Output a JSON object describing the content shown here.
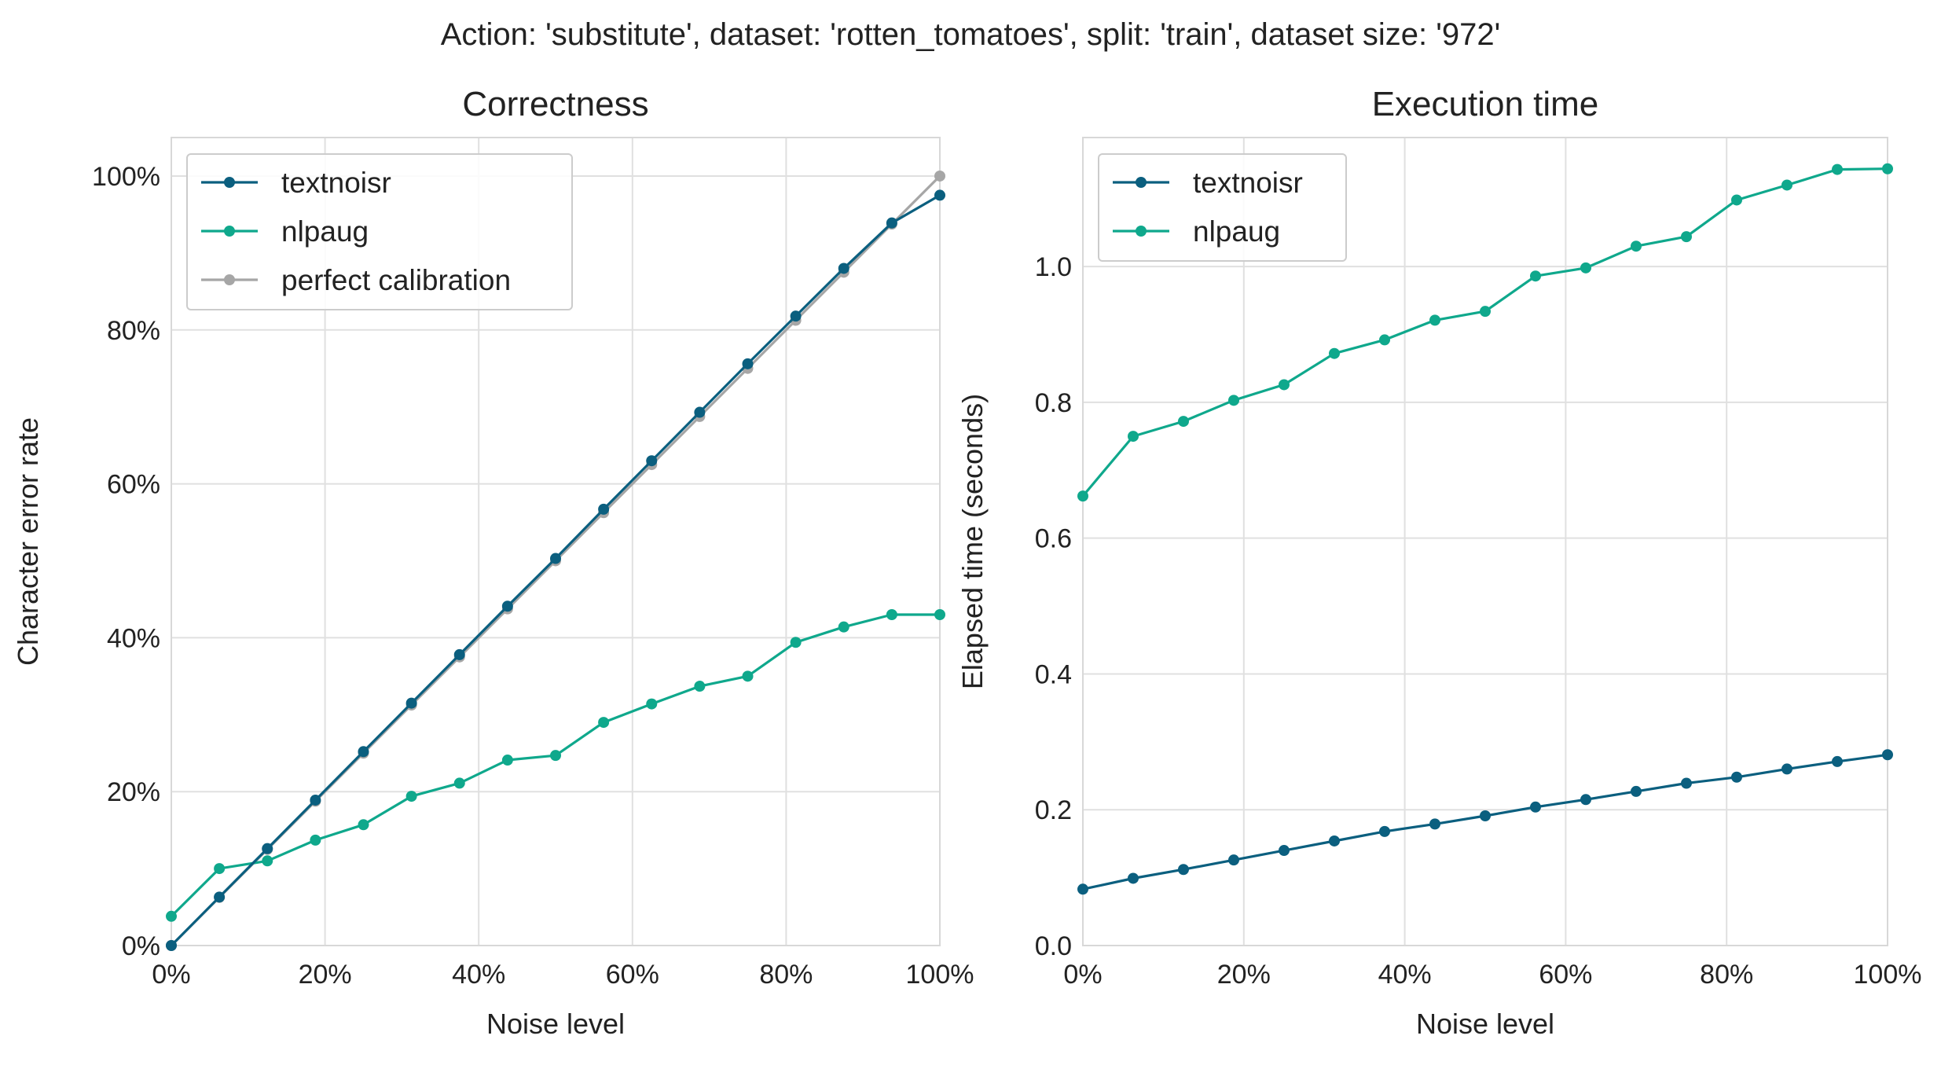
{
  "suptitle": "Action: 'substitute', dataset: 'rotten_tomatoes', split: 'train', dataset size: '972'",
  "chart_data": [
    {
      "type": "line",
      "title": "Correctness",
      "xlabel": "Noise level",
      "ylabel": "Character error rate",
      "xlim": [
        0,
        1
      ],
      "ylim": [
        0,
        1.05
      ],
      "xticks": [
        0,
        0.2,
        0.4,
        0.6,
        0.8,
        1.0
      ],
      "xtick_labels": [
        "0%",
        "20%",
        "40%",
        "60%",
        "80%",
        "100%"
      ],
      "yticks": [
        0,
        0.2,
        0.4,
        0.6,
        0.8,
        1.0
      ],
      "ytick_labels": [
        "0%",
        "20%",
        "40%",
        "60%",
        "80%",
        "100%"
      ],
      "grid": true,
      "legend_position": "top-left",
      "x": [
        0,
        0.0625,
        0.125,
        0.1875,
        0.25,
        0.3125,
        0.375,
        0.4375,
        0.5,
        0.5625,
        0.625,
        0.6875,
        0.75,
        0.8125,
        0.875,
        0.9375,
        1.0
      ],
      "series": [
        {
          "name": "textnoisr",
          "color": "#0b5f7f",
          "values": [
            0.0,
            0.063,
            0.126,
            0.189,
            0.252,
            0.315,
            0.378,
            0.441,
            0.503,
            0.567,
            0.63,
            0.693,
            0.756,
            0.818,
            0.88,
            0.939,
            0.975
          ]
        },
        {
          "name": "nlpaug",
          "color": "#0fa88c",
          "values": [
            0.038,
            0.1,
            0.11,
            0.137,
            0.157,
            0.194,
            0.211,
            0.241,
            0.247,
            0.29,
            0.314,
            0.337,
            0.35,
            0.394,
            0.414,
            0.43,
            0.43
          ]
        },
        {
          "name": "perfect calibration",
          "color": "#a6a6a6",
          "values": [
            0.0,
            0.0625,
            0.125,
            0.1875,
            0.25,
            0.3125,
            0.375,
            0.4375,
            0.5,
            0.5625,
            0.625,
            0.6875,
            0.75,
            0.8125,
            0.875,
            0.9375,
            1.0
          ]
        }
      ]
    },
    {
      "type": "line",
      "title": "Execution time",
      "xlabel": "Noise level",
      "ylabel": "Elapsed time (seconds)",
      "xlim": [
        0,
        1
      ],
      "ylim": [
        0,
        1.19
      ],
      "xticks": [
        0,
        0.2,
        0.4,
        0.6,
        0.8,
        1.0
      ],
      "xtick_labels": [
        "0%",
        "20%",
        "40%",
        "60%",
        "80%",
        "100%"
      ],
      "yticks": [
        0,
        0.2,
        0.4,
        0.6,
        0.8,
        1.0
      ],
      "ytick_labels": [
        "0.0",
        "0.2",
        "0.4",
        "0.6",
        "0.8",
        "1.0"
      ],
      "grid": true,
      "legend_position": "top-left",
      "x": [
        0,
        0.0625,
        0.125,
        0.1875,
        0.25,
        0.3125,
        0.375,
        0.4375,
        0.5,
        0.5625,
        0.625,
        0.6875,
        0.75,
        0.8125,
        0.875,
        0.9375,
        1.0
      ],
      "series": [
        {
          "name": "textnoisr",
          "color": "#0b5f7f",
          "values": [
            0.083,
            0.099,
            0.112,
            0.126,
            0.14,
            0.154,
            0.168,
            0.179,
            0.191,
            0.204,
            0.215,
            0.227,
            0.239,
            0.248,
            0.26,
            0.271,
            0.281
          ]
        },
        {
          "name": "nlpaug",
          "color": "#0fa88c",
          "values": [
            0.662,
            0.75,
            0.772,
            0.803,
            0.826,
            0.872,
            0.892,
            0.921,
            0.934,
            0.986,
            0.998,
            1.03,
            1.044,
            1.098,
            1.12,
            1.143,
            1.144
          ]
        }
      ]
    }
  ]
}
